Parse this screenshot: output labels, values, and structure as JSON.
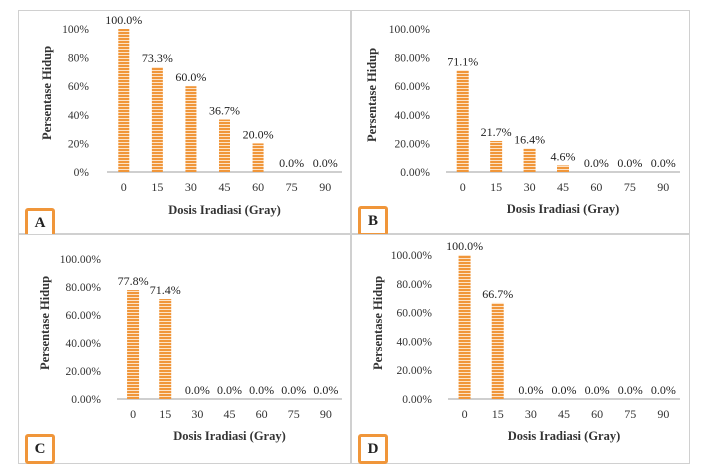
{
  "chart_data": [
    {
      "type": "bar",
      "panel_label": "A",
      "categories": [
        "0",
        "15",
        "30",
        "45",
        "60",
        "75",
        "90"
      ],
      "values": [
        100.0,
        73.3,
        60.0,
        36.7,
        20.0,
        0.0,
        0.0
      ],
      "value_labels": [
        "100.0%",
        "73.3%",
        "60.0%",
        "36.7%",
        "20.0%",
        "0.0%",
        "0.0%"
      ],
      "yticks": [
        "0%",
        "20%",
        "40%",
        "60%",
        "80%",
        "100%"
      ],
      "ylim": [
        0,
        100
      ],
      "xlabel": "Dosis Iradiasi (Gray)",
      "ylabel": "Persentase Hidup"
    },
    {
      "type": "bar",
      "panel_label": "B",
      "categories": [
        "0",
        "15",
        "30",
        "45",
        "60",
        "75",
        "90"
      ],
      "values": [
        71.1,
        21.7,
        16.4,
        4.6,
        0.0,
        0.0,
        0.0
      ],
      "value_labels": [
        "71.1%",
        "21.7%",
        "16.4%",
        "4.6%",
        "0.0%",
        "0.0%",
        "0.0%"
      ],
      "yticks": [
        "0.00%",
        "20.00%",
        "40.00%",
        "60.00%",
        "80.00%",
        "100.00%"
      ],
      "ylim": [
        0,
        100
      ],
      "xlabel": "Dosis Iradiasi (Gray)",
      "ylabel": "Persentase Hidup"
    },
    {
      "type": "bar",
      "panel_label": "C",
      "categories": [
        "0",
        "15",
        "30",
        "45",
        "60",
        "75",
        "90"
      ],
      "values": [
        77.8,
        71.4,
        0.0,
        0.0,
        0.0,
        0.0,
        0.0
      ],
      "value_labels": [
        "77.8%",
        "71.4%",
        "0.0%",
        "0.0%",
        "0.0%",
        "0.0%",
        "0.0%"
      ],
      "yticks": [
        "0.00%",
        "20.00%",
        "40.00%",
        "60.00%",
        "80.00%",
        "100.00%"
      ],
      "ylim": [
        0,
        100
      ],
      "xlabel": "Dosis Iradiasi (Gray)",
      "ylabel": "Persentase Hidup"
    },
    {
      "type": "bar",
      "panel_label": "D",
      "categories": [
        "0",
        "15",
        "30",
        "45",
        "60",
        "75",
        "90"
      ],
      "values": [
        100.0,
        66.7,
        0.0,
        0.0,
        0.0,
        0.0,
        0.0
      ],
      "value_labels": [
        "100.0%",
        "66.7%",
        "0.0%",
        "0.0%",
        "0.0%",
        "0.0%",
        "0.0%"
      ],
      "yticks": [
        "0.00%",
        "20.00%",
        "40.00%",
        "60.00%",
        "80.00%",
        "100.00%"
      ],
      "ylim": [
        0,
        100
      ],
      "xlabel": "Dosis Iradiasi (Gray)",
      "ylabel": "Persentase Hidup"
    }
  ],
  "colors": {
    "bar": "#f0963a",
    "stripe": "#fde3c7",
    "badge_border": "#f0963a",
    "axis": "#bfbfbf"
  }
}
